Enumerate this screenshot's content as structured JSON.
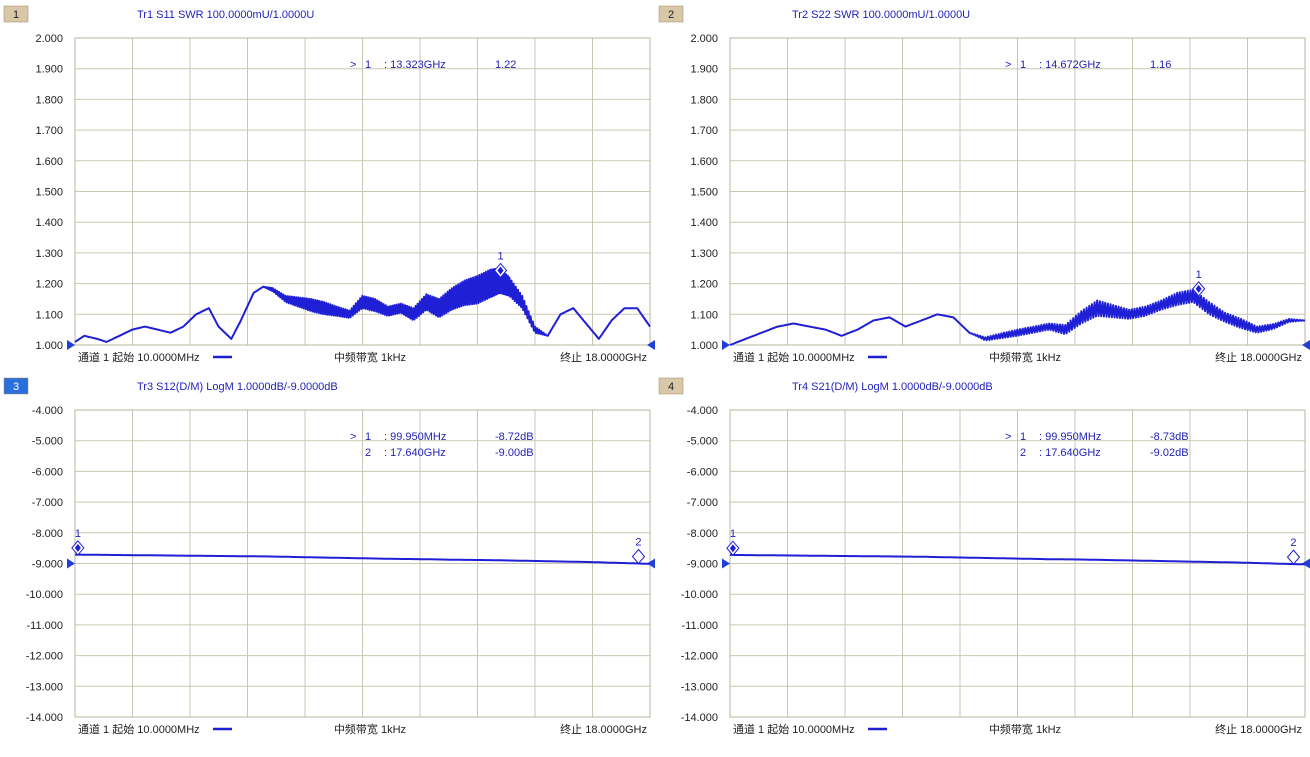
{
  "colors": {
    "trace": "#1f1fd6",
    "label": "#1f1fb8",
    "grid": "#c9c7b4",
    "badge_default": "#d8c8a8",
    "badge_active": "#2a6fdc",
    "marker_arrow": "#1f3fd6"
  },
  "chart_data": [
    {
      "type": "line",
      "panel_number": "1",
      "active": false,
      "title": "Tr1 S11 SWR 100.0000mU/1.0000U",
      "ylim": [
        1.0,
        2.0
      ],
      "yticks": [
        "2.000",
        "1.900",
        "1.800",
        "1.700",
        "1.600",
        "1.500",
        "1.400",
        "1.300",
        "1.200",
        "1.100",
        "1.000"
      ],
      "xlim_ghz": [
        0.01,
        18.0
      ],
      "footer": {
        "start": "通道 1 起始 10.0000MHz",
        "ifbw": "中频带宽 1kHz",
        "stop": "终止 18.0000GHz"
      },
      "marker_readouts": [
        {
          "active": ">",
          "id": "1",
          "freq": ": 13.323GHz",
          "value": "1.22"
        }
      ],
      "markers": [
        {
          "id": "1",
          "x_ghz": 13.323,
          "y": 1.22,
          "active": true
        }
      ],
      "ref_level": 1.0,
      "series": [
        {
          "x": [
            0.01,
            0.3,
            0.7,
            1.0,
            1.4,
            1.8,
            2.2,
            2.6,
            3.0,
            3.4,
            3.8,
            4.2,
            4.5,
            4.9,
            5.2,
            5.6,
            5.9,
            6.2,
            6.6,
            7.0,
            7.4,
            7.8,
            8.2,
            8.6,
            9.0,
            9.4,
            9.8,
            10.2,
            10.6,
            11.0,
            11.4,
            11.8,
            12.2,
            12.6,
            13.0,
            13.3,
            13.6,
            14.0,
            14.4,
            14.8,
            15.2,
            15.6,
            16.0,
            16.4,
            16.8,
            17.2,
            17.6,
            18.0
          ],
          "y": [
            1.01,
            1.03,
            1.02,
            1.01,
            1.03,
            1.05,
            1.06,
            1.05,
            1.04,
            1.06,
            1.1,
            1.12,
            1.06,
            1.02,
            1.08,
            1.17,
            1.19,
            1.18,
            1.15,
            1.14,
            1.13,
            1.12,
            1.11,
            1.1,
            1.14,
            1.13,
            1.11,
            1.12,
            1.1,
            1.14,
            1.12,
            1.15,
            1.17,
            1.18,
            1.2,
            1.21,
            1.19,
            1.14,
            1.05,
            1.03,
            1.1,
            1.12,
            1.07,
            1.02,
            1.08,
            1.12,
            1.12,
            1.06
          ],
          "ripple": [
            0,
            0,
            0,
            0,
            0,
            0,
            0,
            0,
            0,
            0,
            0,
            0,
            0,
            0,
            0,
            0,
            0,
            0.005,
            0.01,
            0.015,
            0.02,
            0.02,
            0.015,
            0.012,
            0.02,
            0.02,
            0.015,
            0.015,
            0.02,
            0.025,
            0.03,
            0.035,
            0.04,
            0.045,
            0.045,
            0.04,
            0.03,
            0.02,
            0.01,
            0,
            0,
            0,
            0,
            0,
            0,
            0,
            0,
            0
          ]
        }
      ]
    },
    {
      "type": "line",
      "panel_number": "2",
      "active": false,
      "title": "Tr2 S22 SWR 100.0000mU/1.0000U",
      "ylim": [
        1.0,
        2.0
      ],
      "yticks": [
        "2.000",
        "1.900",
        "1.800",
        "1.700",
        "1.600",
        "1.500",
        "1.400",
        "1.300",
        "1.200",
        "1.100",
        "1.000"
      ],
      "xlim_ghz": [
        0.01,
        18.0
      ],
      "footer": {
        "start": "通道 1 起始 10.0000MHz",
        "ifbw": "中频带宽 1kHz",
        "stop": "终止 18.0000GHz"
      },
      "marker_readouts": [
        {
          "active": ">",
          "id": "1",
          "freq": ": 14.672GHz",
          "value": "1.16"
        }
      ],
      "markers": [
        {
          "id": "1",
          "x_ghz": 14.672,
          "y": 1.16,
          "active": true
        }
      ],
      "ref_level": 1.0,
      "series": [
        {
          "x": [
            0.01,
            0.5,
            1.0,
            1.5,
            2.0,
            2.5,
            3.0,
            3.5,
            4.0,
            4.5,
            5.0,
            5.5,
            6.0,
            6.5,
            7.0,
            7.5,
            8.0,
            8.5,
            9.0,
            9.5,
            10.0,
            10.5,
            11.0,
            11.5,
            12.0,
            12.5,
            13.0,
            13.5,
            14.0,
            14.5,
            15.0,
            15.5,
            16.0,
            16.5,
            17.0,
            17.5,
            18.0
          ],
          "y": [
            1.0,
            1.02,
            1.04,
            1.06,
            1.07,
            1.06,
            1.05,
            1.03,
            1.05,
            1.08,
            1.09,
            1.06,
            1.08,
            1.1,
            1.09,
            1.04,
            1.02,
            1.03,
            1.04,
            1.05,
            1.06,
            1.05,
            1.09,
            1.12,
            1.11,
            1.1,
            1.11,
            1.13,
            1.15,
            1.16,
            1.12,
            1.09,
            1.07,
            1.05,
            1.06,
            1.08,
            1.08
          ],
          "ripple": [
            0,
            0,
            0,
            0,
            0,
            0,
            0,
            0,
            0,
            0,
            0,
            0,
            0,
            0,
            0,
            0,
            0.005,
            0.008,
            0.01,
            0.01,
            0.01,
            0.015,
            0.02,
            0.025,
            0.02,
            0.015,
            0.015,
            0.015,
            0.02,
            0.02,
            0.02,
            0.015,
            0.015,
            0.01,
            0.008,
            0.005,
            0
          ]
        }
      ]
    },
    {
      "type": "line",
      "panel_number": "3",
      "active": true,
      "title": "Tr3 S12(D/M) LogM 1.0000dB/-9.0000dB",
      "ylim": [
        -14.0,
        -4.0
      ],
      "yticks": [
        "-4.000",
        "-5.000",
        "-6.000",
        "-7.000",
        "-8.000",
        "-9.000",
        "-10.000",
        "-11.000",
        "-12.000",
        "-13.000",
        "-14.000"
      ],
      "xlim_ghz": [
        0.01,
        18.0
      ],
      "footer": {
        "start": "通道 1 起始 10.0000MHz",
        "ifbw": "中频带宽 1kHz",
        "stop": "终止 18.0000GHz"
      },
      "marker_readouts": [
        {
          "active": ">",
          "id": "1",
          "freq": ": 99.950MHz",
          "value": "-8.72dB"
        },
        {
          "active": "",
          "id": "2",
          "freq": ": 17.640GHz",
          "value": "-9.00dB"
        }
      ],
      "markers": [
        {
          "id": "1",
          "x_ghz": 0.09995,
          "y": -8.72,
          "active": true
        },
        {
          "id": "2",
          "x_ghz": 17.64,
          "y": -9.0,
          "active": false
        }
      ],
      "ref_level": -9.0,
      "series": [
        {
          "x": [
            0.01,
            1,
            2,
            3,
            4,
            5,
            6,
            7,
            8,
            9,
            10,
            11,
            12,
            13,
            14,
            15,
            16,
            17,
            18
          ],
          "y": [
            -8.71,
            -8.72,
            -8.73,
            -8.74,
            -8.75,
            -8.76,
            -8.77,
            -8.79,
            -8.81,
            -8.83,
            -8.85,
            -8.86,
            -8.88,
            -8.89,
            -8.91,
            -8.93,
            -8.95,
            -8.98,
            -9.01
          ],
          "ripple": [
            0,
            0,
            0,
            0,
            0,
            0,
            0,
            0,
            0,
            0,
            0,
            0,
            0,
            0,
            0,
            0,
            0,
            0,
            0
          ]
        }
      ]
    },
    {
      "type": "line",
      "panel_number": "4",
      "active": false,
      "title": "Tr4 S21(D/M) LogM 1.0000dB/-9.0000dB",
      "ylim": [
        -14.0,
        -4.0
      ],
      "yticks": [
        "-4.000",
        "-5.000",
        "-6.000",
        "-7.000",
        "-8.000",
        "-9.000",
        "-10.000",
        "-11.000",
        "-12.000",
        "-13.000",
        "-14.000"
      ],
      "xlim_ghz": [
        0.01,
        18.0
      ],
      "footer": {
        "start": "通道 1 起始 10.0000MHz",
        "ifbw": "中频带宽 1kHz",
        "stop": "终止 18.0000GHz"
      },
      "marker_readouts": [
        {
          "active": ">",
          "id": "1",
          "freq": ": 99.950MHz",
          "value": "-8.73dB"
        },
        {
          "active": "",
          "id": "2",
          "freq": ": 17.640GHz",
          "value": "-9.02dB"
        }
      ],
      "markers": [
        {
          "id": "1",
          "x_ghz": 0.09995,
          "y": -8.73,
          "active": true
        },
        {
          "id": "2",
          "x_ghz": 17.64,
          "y": -9.02,
          "active": false
        }
      ],
      "ref_level": -9.0,
      "series": [
        {
          "x": [
            0.01,
            1,
            2,
            3,
            4,
            5,
            6,
            7,
            8,
            9,
            10,
            11,
            12,
            13,
            14,
            15,
            16,
            17,
            18
          ],
          "y": [
            -8.72,
            -8.73,
            -8.74,
            -8.75,
            -8.76,
            -8.77,
            -8.78,
            -8.8,
            -8.82,
            -8.84,
            -8.86,
            -8.87,
            -8.89,
            -8.91,
            -8.93,
            -8.95,
            -8.97,
            -9.0,
            -9.03
          ],
          "ripple": [
            0,
            0,
            0,
            0,
            0,
            0,
            0,
            0,
            0,
            0,
            0,
            0,
            0,
            0,
            0,
            0,
            0,
            0,
            0
          ]
        }
      ]
    }
  ]
}
